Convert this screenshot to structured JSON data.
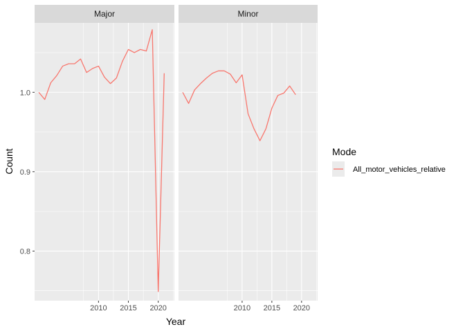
{
  "chart_data": {
    "type": "line",
    "xlabel": "Year",
    "ylabel": "Count",
    "xlim": [
      1999.3,
      2022.7
    ],
    "ylim": [
      0.7375,
      1.0875
    ],
    "x_ticks": [
      2010,
      2015,
      2020
    ],
    "y_ticks": [
      0.8,
      0.9,
      1.0
    ],
    "x_tick_labels": [
      "2010",
      "2015",
      "2020"
    ],
    "y_tick_labels": [
      "0.8",
      "0.9",
      "1.0"
    ],
    "grid": true,
    "legend": {
      "title": "Mode",
      "position": "right",
      "entries": [
        "All_motor_vehicles_relative"
      ]
    },
    "line_color": "#F8766D",
    "panels": [
      {
        "strip": "Major",
        "series": [
          {
            "name": "All_motor_vehicles_relative",
            "x": [
              2000,
              2001,
              2002,
              2003,
              2004,
              2005,
              2006,
              2007,
              2008,
              2009,
              2010,
              2011,
              2012,
              2013,
              2014,
              2015,
              2016,
              2017,
              2018,
              2019,
              2020,
              2021
            ],
            "y": [
              1.0,
              0.991,
              1.012,
              1.021,
              1.033,
              1.036,
              1.036,
              1.042,
              1.025,
              1.03,
              1.033,
              1.019,
              1.011,
              1.018,
              1.039,
              1.054,
              1.05,
              1.054,
              1.052,
              1.079,
              0.749,
              1.024
            ]
          }
        ]
      },
      {
        "strip": "Minor",
        "series": [
          {
            "name": "All_motor_vehicles_relative",
            "x": [
              2000,
              2001,
              2002,
              2003,
              2004,
              2005,
              2006,
              2007,
              2008,
              2009,
              2010,
              2011,
              2012,
              2013,
              2014,
              2015,
              2016,
              2017,
              2018,
              2019
            ],
            "y": [
              1.0,
              0.986,
              1.003,
              1.011,
              1.018,
              1.024,
              1.027,
              1.027,
              1.023,
              1.012,
              1.022,
              0.973,
              0.954,
              0.939,
              0.954,
              0.98,
              0.996,
              0.999,
              1.008,
              0.997
            ]
          }
        ]
      }
    ]
  }
}
